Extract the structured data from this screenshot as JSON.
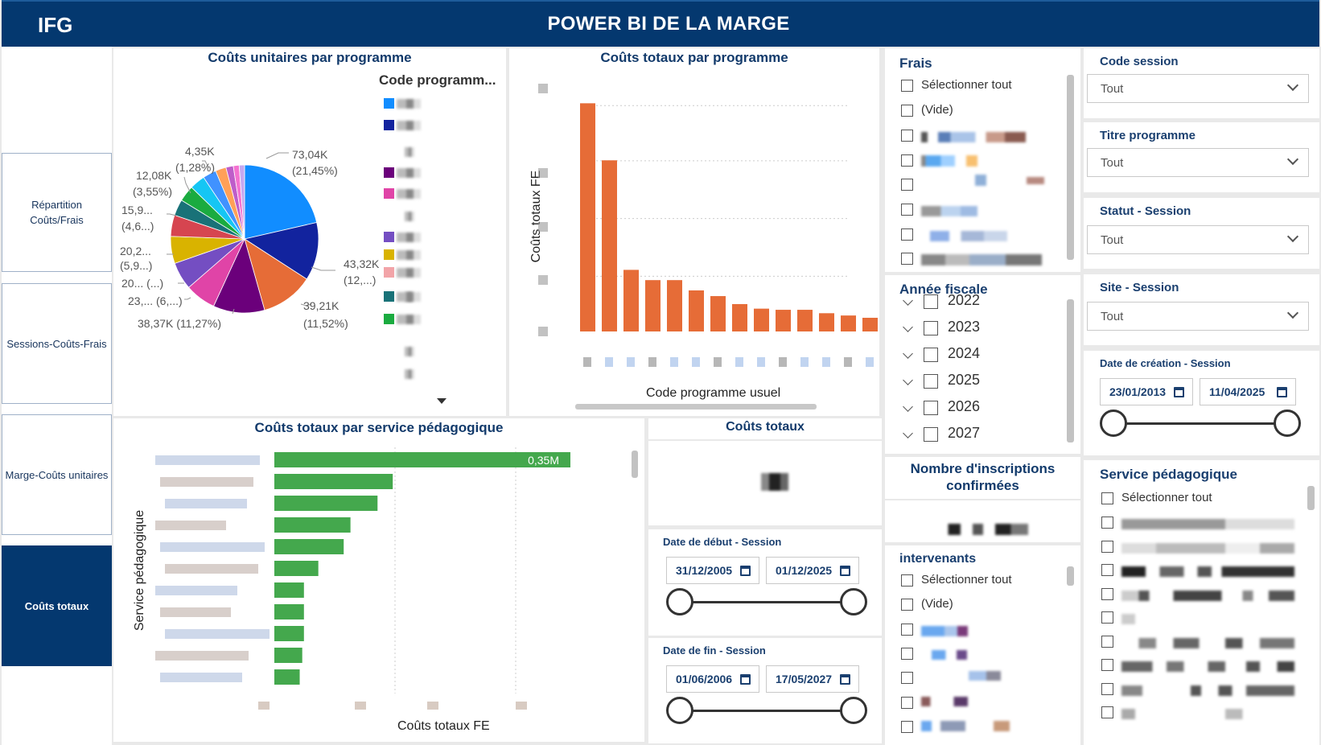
{
  "header": {
    "logo": "IFG",
    "title": "POWER BI DE LA MARGE"
  },
  "nav": [
    {
      "label": "Répartition Coûts/Frais",
      "active": false
    },
    {
      "label": "Sessions-Coûts-Frais",
      "active": false
    },
    {
      "label": "Marge-Coûts unitaires",
      "active": false
    },
    {
      "label": "Coûts totaux",
      "active": true
    }
  ],
  "pie_visual": {
    "title": "Coûts unitaires par programme",
    "legend_title": "Code programm...",
    "labels": [
      "73,04K",
      "(21,45%)",
      "43,32K",
      "(12,...)",
      "39,21K",
      "(11,52%)",
      "38,37K (11,27%)",
      "23,... (6,...)",
      "20... (...)",
      "20,2...",
      "(5,9...)",
      "15,9...",
      "(4,6...)",
      "12,08K",
      "(3,55%)",
      "4,35K",
      "(1,28%)"
    ],
    "legend_colors": [
      "#118DFF",
      "#12239E",
      "#E66C37",
      "#6B007B",
      "#E044A7",
      "#744EC2",
      "#D9B300",
      "#D64550",
      "#197278",
      "#1AAB40"
    ]
  },
  "bar_visual": {
    "title": "Coûts totaux par programme",
    "ylabel": "Coûts totaux FE",
    "xlabel": "Code programme usuel"
  },
  "service_visual": {
    "title": "Coûts totaux par service pédagogique",
    "ylabel": "Service pédagogique",
    "xlabel": "Coûts totaux FE",
    "top_label": "0,35M"
  },
  "couts_totaux_card": {
    "title": "Coûts totaux"
  },
  "date_debut": {
    "title": "Date de début - Session",
    "start": "31/12/2005",
    "end": "01/12/2025"
  },
  "date_fin": {
    "title": "Date de fin - Session",
    "start": "01/06/2006",
    "end": "17/05/2027"
  },
  "frais": {
    "title": "Frais",
    "select_all": "Sélectionner tout",
    "empty": "(Vide)"
  },
  "annee": {
    "title": "Année fiscale",
    "years": [
      "2022",
      "2023",
      "2024",
      "2025",
      "2026",
      "2027"
    ]
  },
  "inscriptions": {
    "title": "Nombre d'inscriptions confirmées"
  },
  "intervenants": {
    "title": "intervenants",
    "select_all": "Sélectionner tout",
    "empty": "(Vide)"
  },
  "code_session": {
    "title": "Code session",
    "value": "Tout"
  },
  "titre_programme": {
    "title": "Titre programme",
    "value": "Tout"
  },
  "statut_session": {
    "title": "Statut - Session",
    "value": "Tout"
  },
  "site_session": {
    "title": "Site - Session",
    "value": "Tout"
  },
  "date_creation": {
    "title": "Date de création - Session",
    "start": "23/01/2013",
    "end": "11/04/2025"
  },
  "service_pedago": {
    "title": "Service pédagogique",
    "select_all": "Sélectionner tout"
  },
  "chart_data": [
    {
      "type": "pie",
      "title": "Coûts unitaires par programme",
      "legend_title": "Code programm...",
      "slices": [
        {
          "value": 73.04,
          "percent": 21.45,
          "color": "#118DFF"
        },
        {
          "value": 43.32,
          "percent": 12.72,
          "color": "#12239E"
        },
        {
          "value": 39.21,
          "percent": 11.52,
          "color": "#E66C37"
        },
        {
          "value": 38.37,
          "percent": 11.27,
          "color": "#6B007B"
        },
        {
          "value": 23.0,
          "percent": 6.75,
          "color": "#E044A7"
        },
        {
          "value": 20.5,
          "percent": 6.0,
          "color": "#744EC2"
        },
        {
          "value": 20.2,
          "percent": 5.9,
          "color": "#D9B300"
        },
        {
          "value": 15.9,
          "percent": 4.67,
          "color": "#D64550"
        },
        {
          "value": 12.08,
          "percent": 3.55,
          "color": "#197278"
        },
        {
          "value": 12.0,
          "percent": 3.5,
          "color": "#1AAB40"
        },
        {
          "value": 11.5,
          "percent": 3.4,
          "color": "#15C6F4"
        },
        {
          "value": 10.0,
          "percent": 2.9,
          "color": "#4092FF"
        },
        {
          "value": 8.0,
          "percent": 2.3,
          "color": "#FFA058"
        },
        {
          "value": 5.5,
          "percent": 1.6,
          "color": "#BE5DC9"
        },
        {
          "value": 4.35,
          "percent": 1.28,
          "color": "#F472D0"
        },
        {
          "value": 4.0,
          "percent": 1.2,
          "color": "#C5A8F0"
        }
      ]
    },
    {
      "type": "bar",
      "title": "Coûts totaux par programme",
      "ylabel": "Coûts totaux FE",
      "xlabel": "Code programme usuel",
      "values": [
        100,
        75,
        27,
        22.5,
        22.5,
        18,
        15.5,
        12,
        10,
        9.5,
        9.5,
        8,
        7,
        6
      ],
      "ymax": 110,
      "color": "#E66C37"
    },
    {
      "type": "bar",
      "orientation": "horizontal",
      "title": "Coûts totaux par service pédagogique",
      "ylabel": "Service pédagogique",
      "xlabel": "Coûts totaux FE",
      "values": [
        0.35,
        0.14,
        0.122,
        0.09,
        0.082,
        0.052,
        0.035,
        0.035,
        0.035,
        0.033,
        0.03
      ],
      "xmax": 0.52,
      "color": "#44A84D"
    }
  ]
}
